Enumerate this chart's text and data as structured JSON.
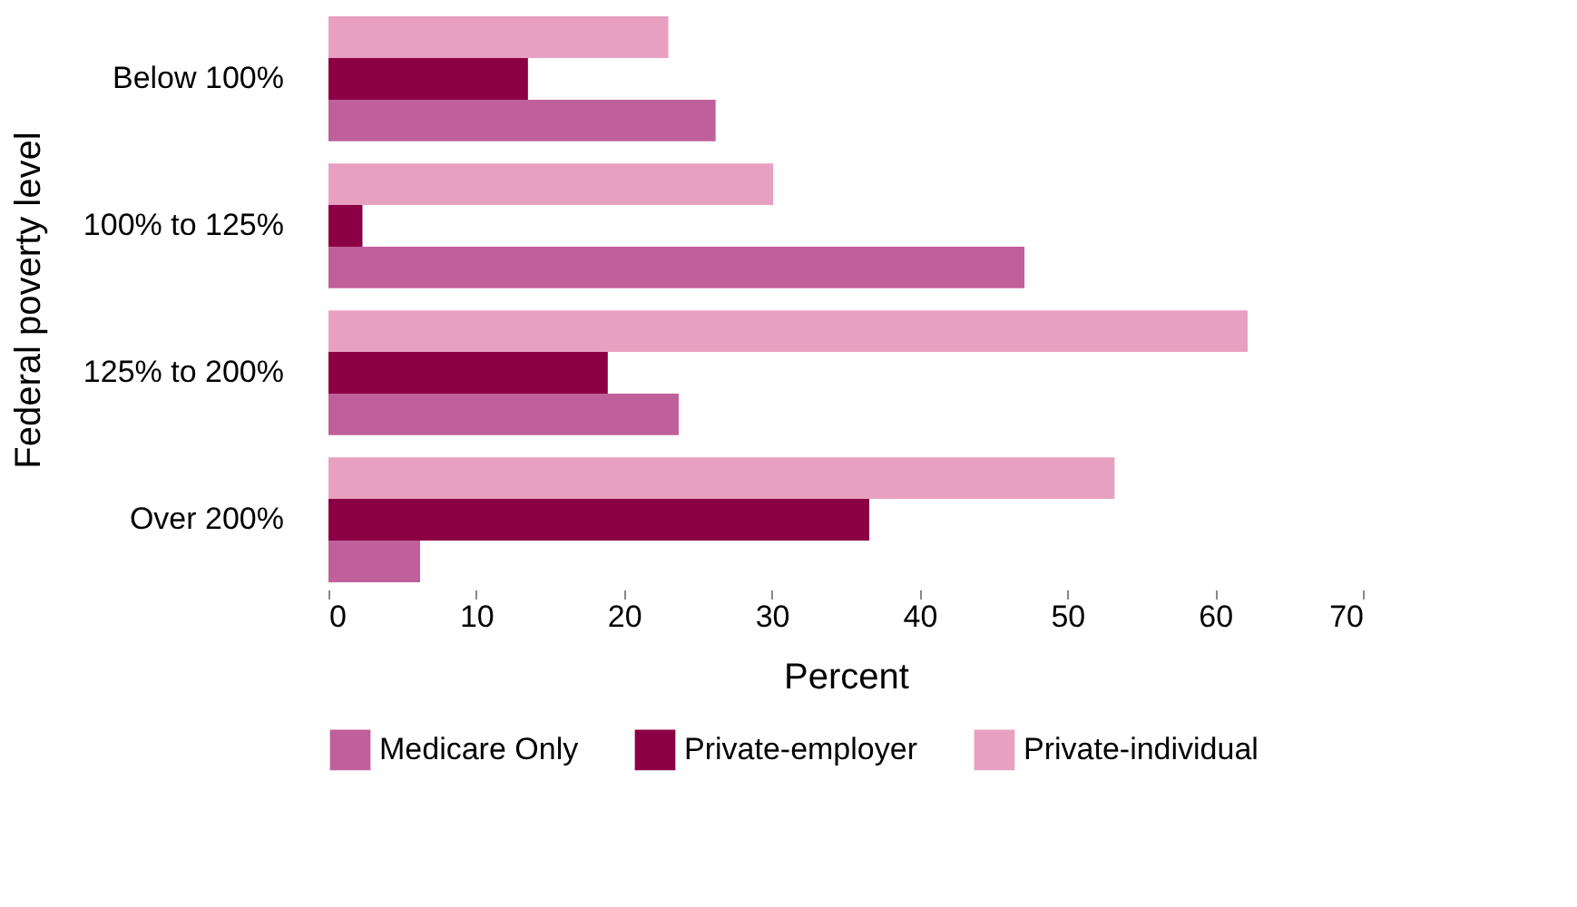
{
  "chart_data": {
    "type": "bar",
    "orientation": "horizontal",
    "xlabel": "Percent",
    "ylabel": "Federal poverty level",
    "categories": [
      "Below 100%",
      "100% to 125%",
      "125% to 200%",
      "Over 200%"
    ],
    "series": [
      {
        "name": "Medicare Only",
        "color": "#c0609a",
        "values": [
          26.2,
          47.1,
          23.7,
          6.2
        ]
      },
      {
        "name": "Private-employer",
        "color": "#8b0045",
        "values": [
          13.5,
          2.3,
          18.9,
          36.6
        ]
      },
      {
        "name": "Private-individual",
        "color": "#e8a0c0",
        "values": [
          23.0,
          30.1,
          62.2,
          53.2
        ]
      }
    ],
    "xlim": [
      0,
      70
    ],
    "xticks": [
      0,
      10,
      20,
      30,
      40,
      50,
      60,
      70
    ],
    "grid": false,
    "legend": "bottom"
  }
}
